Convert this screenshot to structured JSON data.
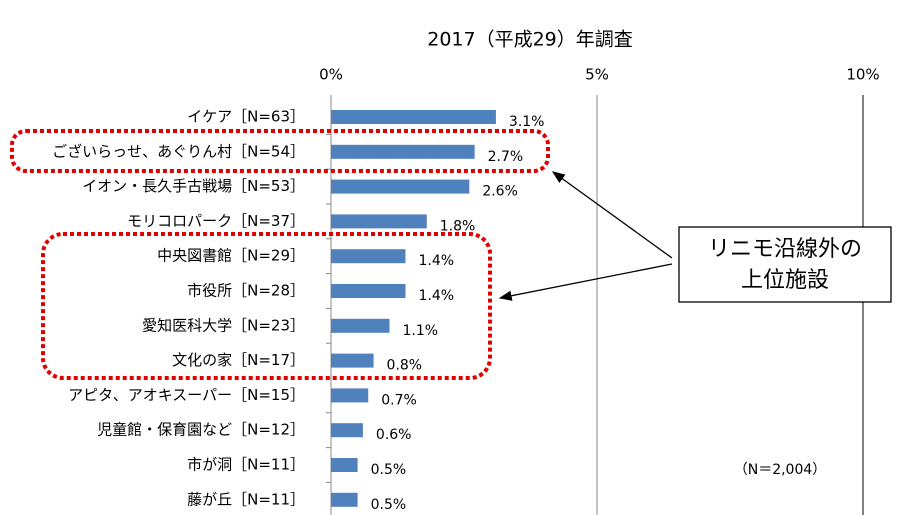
{
  "chart_data": {
    "type": "bar",
    "orientation": "horizontal",
    "title": "2017（平成29）年調査",
    "categories": [
      "イケア［N=63］",
      "ございらっせ、あぐりん村［N=54］",
      "イオン・長久手古戦場［N=53］",
      "モリコロパーク［N=37］",
      "中央図書館［N=29］",
      "市役所［N=28］",
      "愛知医科大学［N=23］",
      "文化の家［N=17］",
      "アピタ、アオキスーパー［N=15］",
      "児童館・保育園など［N=12］",
      "市が洞［N=11］",
      "藤が丘［N=11］"
    ],
    "values": [
      3.1,
      2.7,
      2.6,
      1.8,
      1.4,
      1.4,
      1.1,
      0.8,
      0.7,
      0.6,
      0.5,
      0.5
    ],
    "value_labels": [
      "3.1%",
      "2.7%",
      "2.6%",
      "1.8%",
      "1.4%",
      "1.4%",
      "1.1%",
      "0.8%",
      "0.7%",
      "0.6%",
      "0.5%",
      "0.5%"
    ],
    "color": "#4f81bd",
    "xlim": [
      0,
      10
    ],
    "xticks": [
      {
        "value": 0,
        "label": "0%"
      },
      {
        "value": 5,
        "label": "5%"
      },
      {
        "value": 10,
        "label": "10%"
      }
    ],
    "grid": true,
    "annotation": [
      "リニモ沿線外の",
      "上位施設"
    ],
    "note": "（N＝2,004）"
  }
}
